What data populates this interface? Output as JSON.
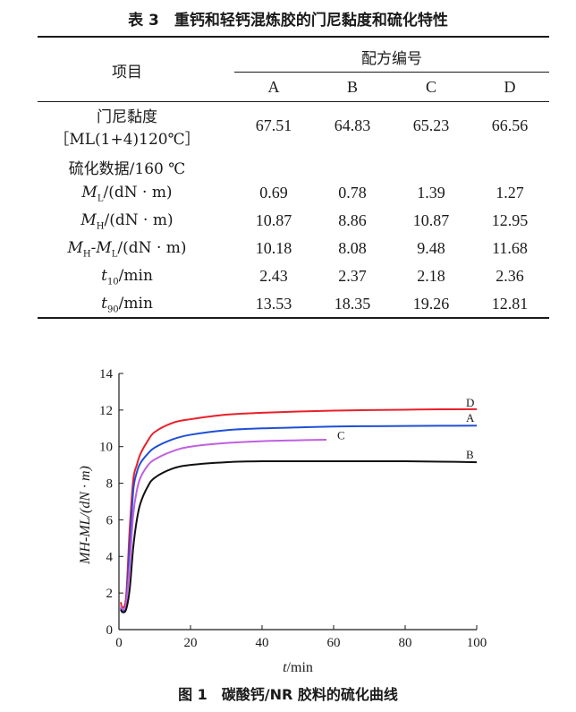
{
  "table": {
    "caption": "表 3　重钙和轻钙混炼胶的门尼黏度和硫化特性",
    "header": {
      "item_label": "项目",
      "group_label": "配方编号",
      "columns": [
        "A",
        "B",
        "C",
        "D"
      ]
    },
    "rows": [
      {
        "label_line1": "门尼黏度",
        "label_line2": "［ML(1+4)120℃］",
        "values": [
          "67.51",
          "64.83",
          "65.23",
          "66.56"
        ]
      },
      {
        "label": "硫化数据/160 ℃"
      },
      {
        "sym": "M",
        "sub": "L",
        "unit": "/(dN · m)",
        "values": [
          "0.69",
          "0.78",
          "1.39",
          "1.27"
        ]
      },
      {
        "sym": "M",
        "sub": "H",
        "unit": "/(dN · m)",
        "values": [
          "10.87",
          "8.86",
          "10.87",
          "12.95"
        ]
      },
      {
        "sym": "M",
        "sub": "H",
        "sym2": "-M",
        "sub2": "L",
        "unit": "/(dN · m)",
        "values": [
          "10.18",
          "8.08",
          "9.48",
          "11.68"
        ]
      },
      {
        "sym": "t",
        "sub": "10",
        "unit": "/min",
        "values": [
          "2.43",
          "2.37",
          "2.18",
          "2.36"
        ]
      },
      {
        "sym": "t",
        "sub": "90",
        "unit": "/min",
        "values": [
          "13.53",
          "18.35",
          "19.26",
          "12.81"
        ]
      }
    ]
  },
  "figure": {
    "caption": "图 1　碳酸钙/NR 胶料的硫化曲线",
    "chart_data": {
      "type": "line",
      "xlabel_italic": "t",
      "xlabel_rest": "/min",
      "ylabel": "MH-ML/(dN · m)",
      "xlim": [
        0,
        100
      ],
      "ylim": [
        0,
        14
      ],
      "xticks": [
        0,
        20,
        40,
        60,
        80,
        100
      ],
      "yticks": [
        0,
        2,
        4,
        6,
        8,
        10,
        12,
        14
      ],
      "grid": false,
      "series": [
        {
          "name": "D",
          "color": "#e8202a",
          "x": [
            0.5,
            1,
            2,
            3,
            4,
            5,
            6,
            8,
            10,
            15,
            20,
            30,
            40,
            50,
            60,
            70,
            80,
            90,
            100
          ],
          "y": [
            1.5,
            1.2,
            1.8,
            5.5,
            8.2,
            9.0,
            9.6,
            10.3,
            10.8,
            11.3,
            11.5,
            11.75,
            11.85,
            11.92,
            11.97,
            12.0,
            12.02,
            12.04,
            12.05
          ]
        },
        {
          "name": "A",
          "color": "#1f4fd6",
          "x": [
            0.5,
            1,
            2,
            3,
            4,
            5,
            6,
            8,
            10,
            15,
            20,
            30,
            40,
            50,
            60,
            70,
            80,
            90,
            100
          ],
          "y": [
            1.2,
            1.0,
            1.5,
            4.5,
            7.6,
            8.6,
            9.1,
            9.6,
            9.95,
            10.4,
            10.65,
            10.9,
            11.0,
            11.05,
            11.1,
            11.12,
            11.13,
            11.14,
            11.15
          ]
        },
        {
          "name": "C",
          "color": "#c060e0",
          "x": [
            0.5,
            1,
            2,
            3,
            4,
            5,
            6,
            8,
            10,
            15,
            20,
            30,
            40,
            50,
            58
          ],
          "y": [
            1.3,
            1.1,
            1.4,
            3.5,
            6.3,
            7.6,
            8.3,
            8.95,
            9.3,
            9.75,
            10.0,
            10.2,
            10.3,
            10.35,
            10.38
          ]
        },
        {
          "name": "B",
          "color": "#111111",
          "x": [
            0.5,
            1,
            2,
            3,
            4,
            5,
            6,
            8,
            10,
            15,
            20,
            30,
            40,
            50,
            60,
            70,
            80,
            90,
            100
          ],
          "y": [
            1.1,
            0.95,
            1.1,
            2.2,
            4.5,
            6.0,
            6.9,
            7.8,
            8.3,
            8.8,
            9.0,
            9.15,
            9.2,
            9.2,
            9.2,
            9.2,
            9.2,
            9.18,
            9.15
          ]
        }
      ],
      "labels": [
        {
          "text": "D",
          "x": 97,
          "y": 12.2
        },
        {
          "text": "A",
          "x": 97,
          "y": 11.35
        },
        {
          "text": "C",
          "x": 61,
          "y": 10.4
        },
        {
          "text": "B",
          "x": 97,
          "y": 9.35
        }
      ]
    }
  }
}
